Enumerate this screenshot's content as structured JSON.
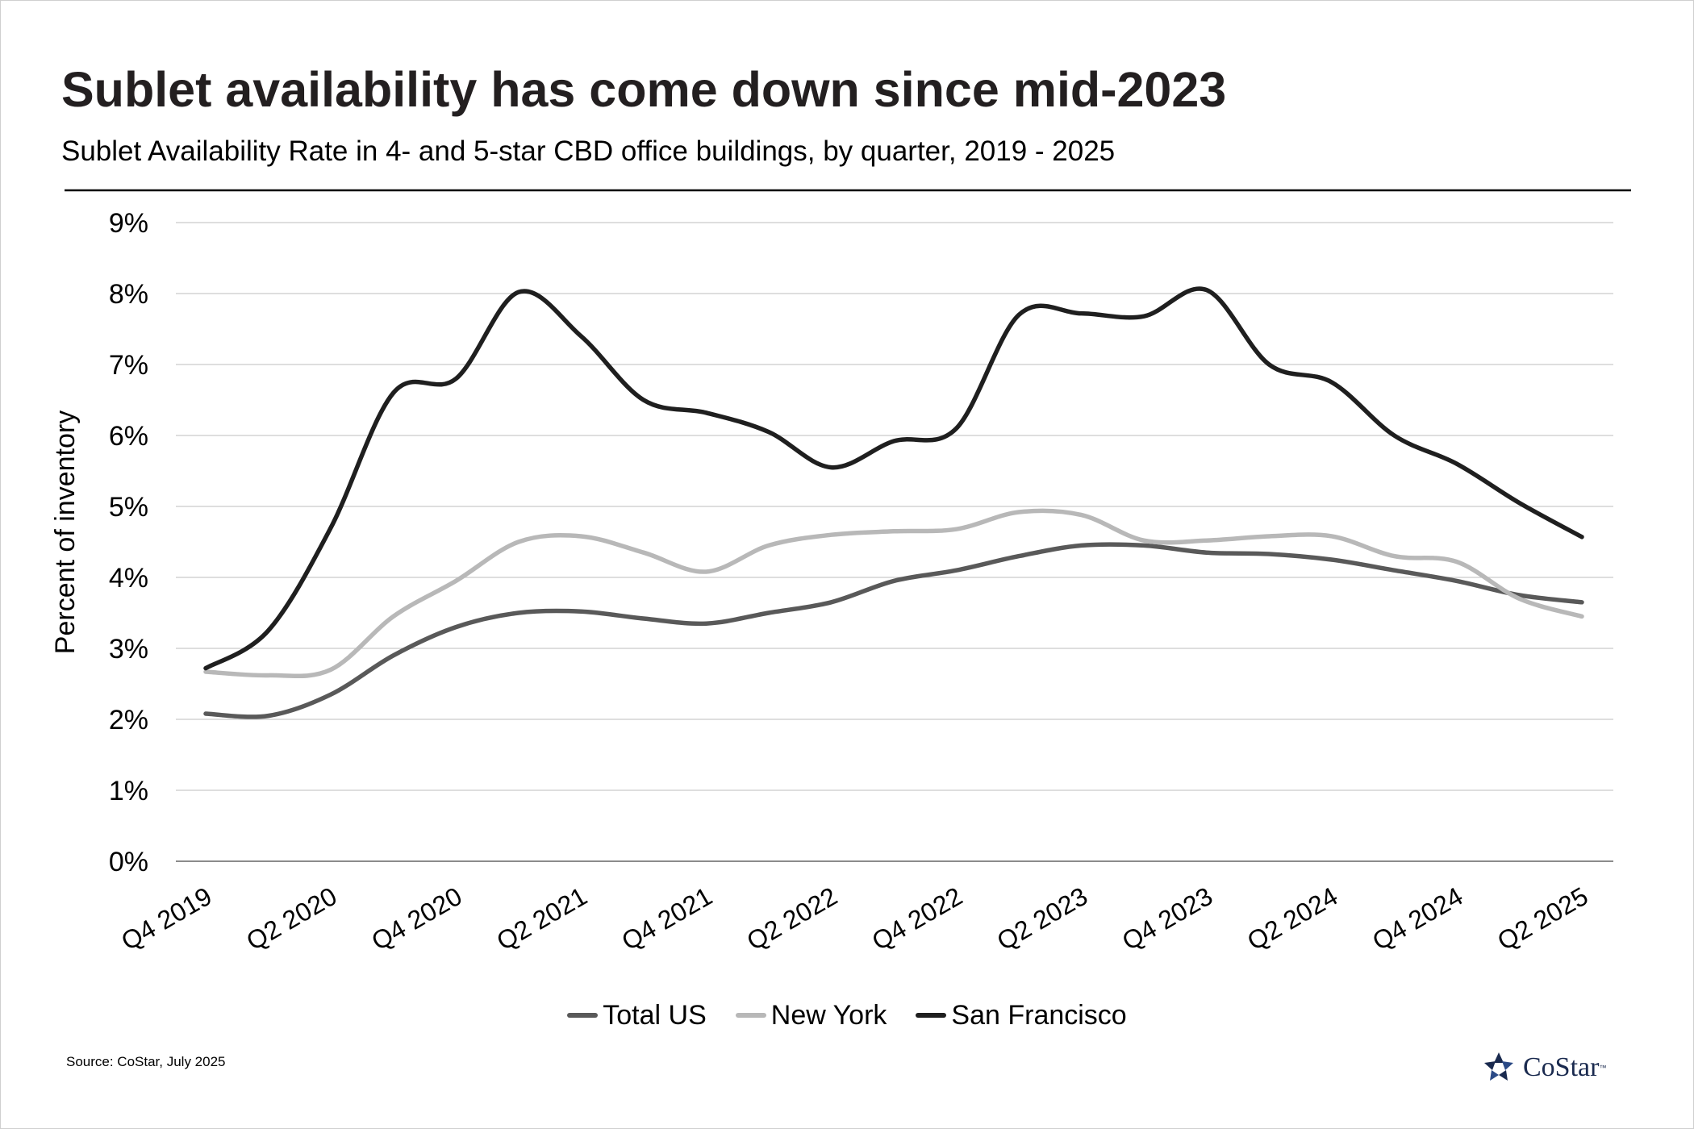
{
  "title": "Sublet availability has come down since mid-2023",
  "subtitle": "Sublet Availability Rate in 4- and 5-star CBD office buildings, by quarter, 2019 - 2025",
  "source": "Source: CoStar, July 2025",
  "logo": {
    "text": "CoStar",
    "tm": "™",
    "icon": "costar-star-icon"
  },
  "colors": {
    "Total US": "#595959",
    "New York": "#b8b8b8",
    "San Francisco": "#1f1f1f",
    "grid": "#c9c9c9",
    "axis": "#8c8c8c"
  },
  "chart_data": {
    "type": "line",
    "title": "Sublet availability has come down since mid-2023",
    "xlabel": "",
    "ylabel": "Percent of inventory",
    "ylim": [
      0,
      9
    ],
    "yticks": [
      "0%",
      "1%",
      "2%",
      "3%",
      "4%",
      "5%",
      "6%",
      "7%",
      "8%",
      "9%"
    ],
    "grid": true,
    "legend_position": "bottom",
    "x": [
      "Q4 2019",
      "Q1 2020",
      "Q2 2020",
      "Q3 2020",
      "Q4 2020",
      "Q1 2021",
      "Q2 2021",
      "Q3 2021",
      "Q4 2021",
      "Q1 2022",
      "Q2 2022",
      "Q3 2022",
      "Q4 2022",
      "Q1 2023",
      "Q2 2023",
      "Q3 2023",
      "Q4 2023",
      "Q1 2024",
      "Q2 2024",
      "Q3 2024",
      "Q4 2024",
      "Q1 2025",
      "Q2 2025"
    ],
    "xtick_labels": [
      "Q4 2019",
      "Q2 2020",
      "Q4 2020",
      "Q2 2021",
      "Q4 2021",
      "Q2 2022",
      "Q4 2022",
      "Q2 2023",
      "Q4 2023",
      "Q2 2024",
      "Q4 2024",
      "Q2 2025"
    ],
    "series": [
      {
        "name": "Total US",
        "values": [
          2.08,
          2.05,
          2.35,
          2.9,
          3.3,
          3.5,
          3.52,
          3.42,
          3.35,
          3.5,
          3.65,
          3.95,
          4.1,
          4.3,
          4.45,
          4.45,
          4.35,
          4.33,
          4.25,
          4.1,
          3.95,
          3.75,
          3.65
        ]
      },
      {
        "name": "New York",
        "values": [
          2.67,
          2.62,
          2.7,
          3.45,
          3.95,
          4.5,
          4.58,
          4.35,
          4.08,
          4.45,
          4.6,
          4.65,
          4.68,
          4.92,
          4.88,
          4.52,
          4.52,
          4.58,
          4.58,
          4.3,
          4.22,
          3.7,
          3.45
        ]
      },
      {
        "name": "San Francisco",
        "values": [
          2.72,
          3.25,
          4.7,
          6.6,
          6.8,
          8.02,
          7.4,
          6.5,
          6.32,
          6.05,
          5.55,
          5.92,
          6.1,
          7.7,
          7.72,
          7.68,
          8.05,
          7.0,
          6.75,
          6.0,
          5.6,
          5.05,
          4.57
        ]
      }
    ]
  }
}
